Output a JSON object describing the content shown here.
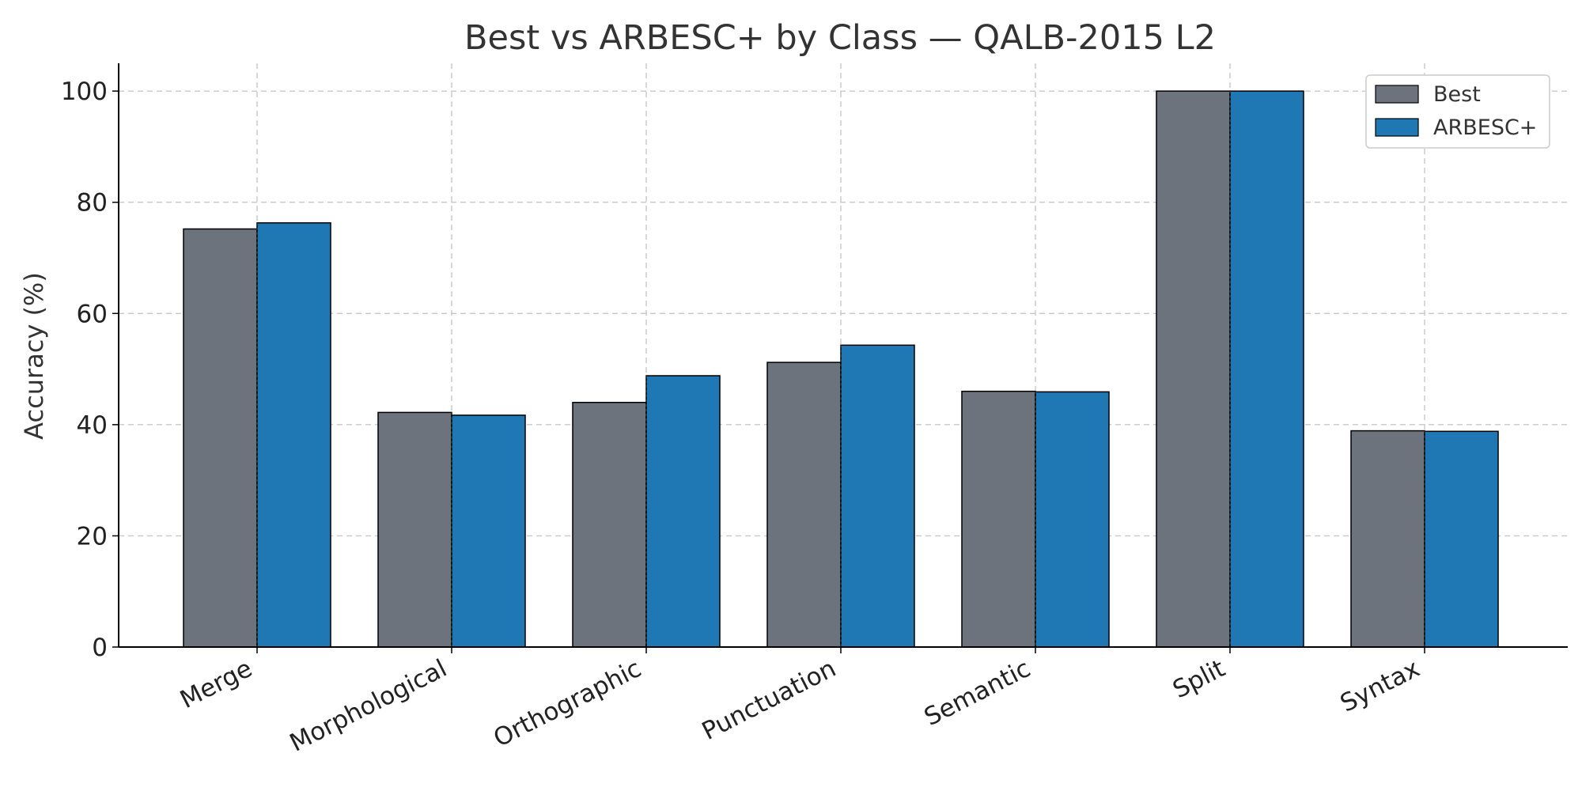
{
  "chart_data": {
    "type": "bar",
    "title": "Best vs ARBESC+ by Class — QALB-2015 L2",
    "xlabel": "",
    "ylabel": "Accuracy (%)",
    "ylim": [
      0,
      105
    ],
    "yticks": [
      0,
      20,
      40,
      60,
      80,
      100
    ],
    "grid": true,
    "legend_position": "top-right",
    "categories": [
      "Merge",
      "Morphological",
      "Orthographic",
      "Punctuation",
      "Semantic",
      "Split",
      "Syntax"
    ],
    "series": [
      {
        "name": "Best",
        "color": "#6c737c",
        "values": [
          75.2,
          42.2,
          44.0,
          51.2,
          46.0,
          100.0,
          38.9
        ]
      },
      {
        "name": "ARBESC+",
        "color": "#1f77b4",
        "values": [
          76.3,
          41.7,
          48.8,
          54.3,
          45.9,
          100.0,
          38.8
        ]
      }
    ]
  }
}
